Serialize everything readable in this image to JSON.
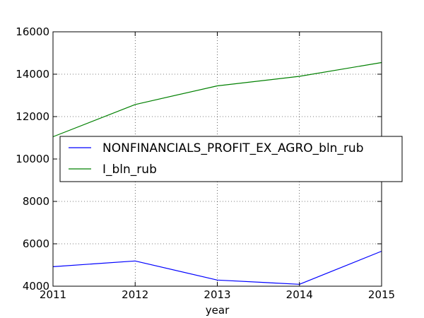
{
  "chart_data": {
    "type": "line",
    "x": [
      2011,
      2012,
      2013,
      2014,
      2015
    ],
    "xlabel": "year",
    "ylabel": "",
    "title": "",
    "xlim": [
      2011,
      2015
    ],
    "ylim": [
      4000,
      16000
    ],
    "xticks": [
      "2011",
      "2012",
      "2013",
      "2014",
      "2015"
    ],
    "yticks": [
      "4000",
      "6000",
      "8000",
      "10000",
      "12000",
      "14000",
      "16000"
    ],
    "grid": true,
    "legend_position": "center-right",
    "series": [
      {
        "name": "NONFINANCIALS_PROFIT_EX_AGRO_bln_rub",
        "color": "#0000ff",
        "values": [
          4920,
          5190,
          4290,
          4090,
          5650
        ]
      },
      {
        "name": "I_bln_rub",
        "color": "#008000",
        "values": [
          11050,
          12570,
          13450,
          13900,
          14550
        ]
      }
    ]
  }
}
